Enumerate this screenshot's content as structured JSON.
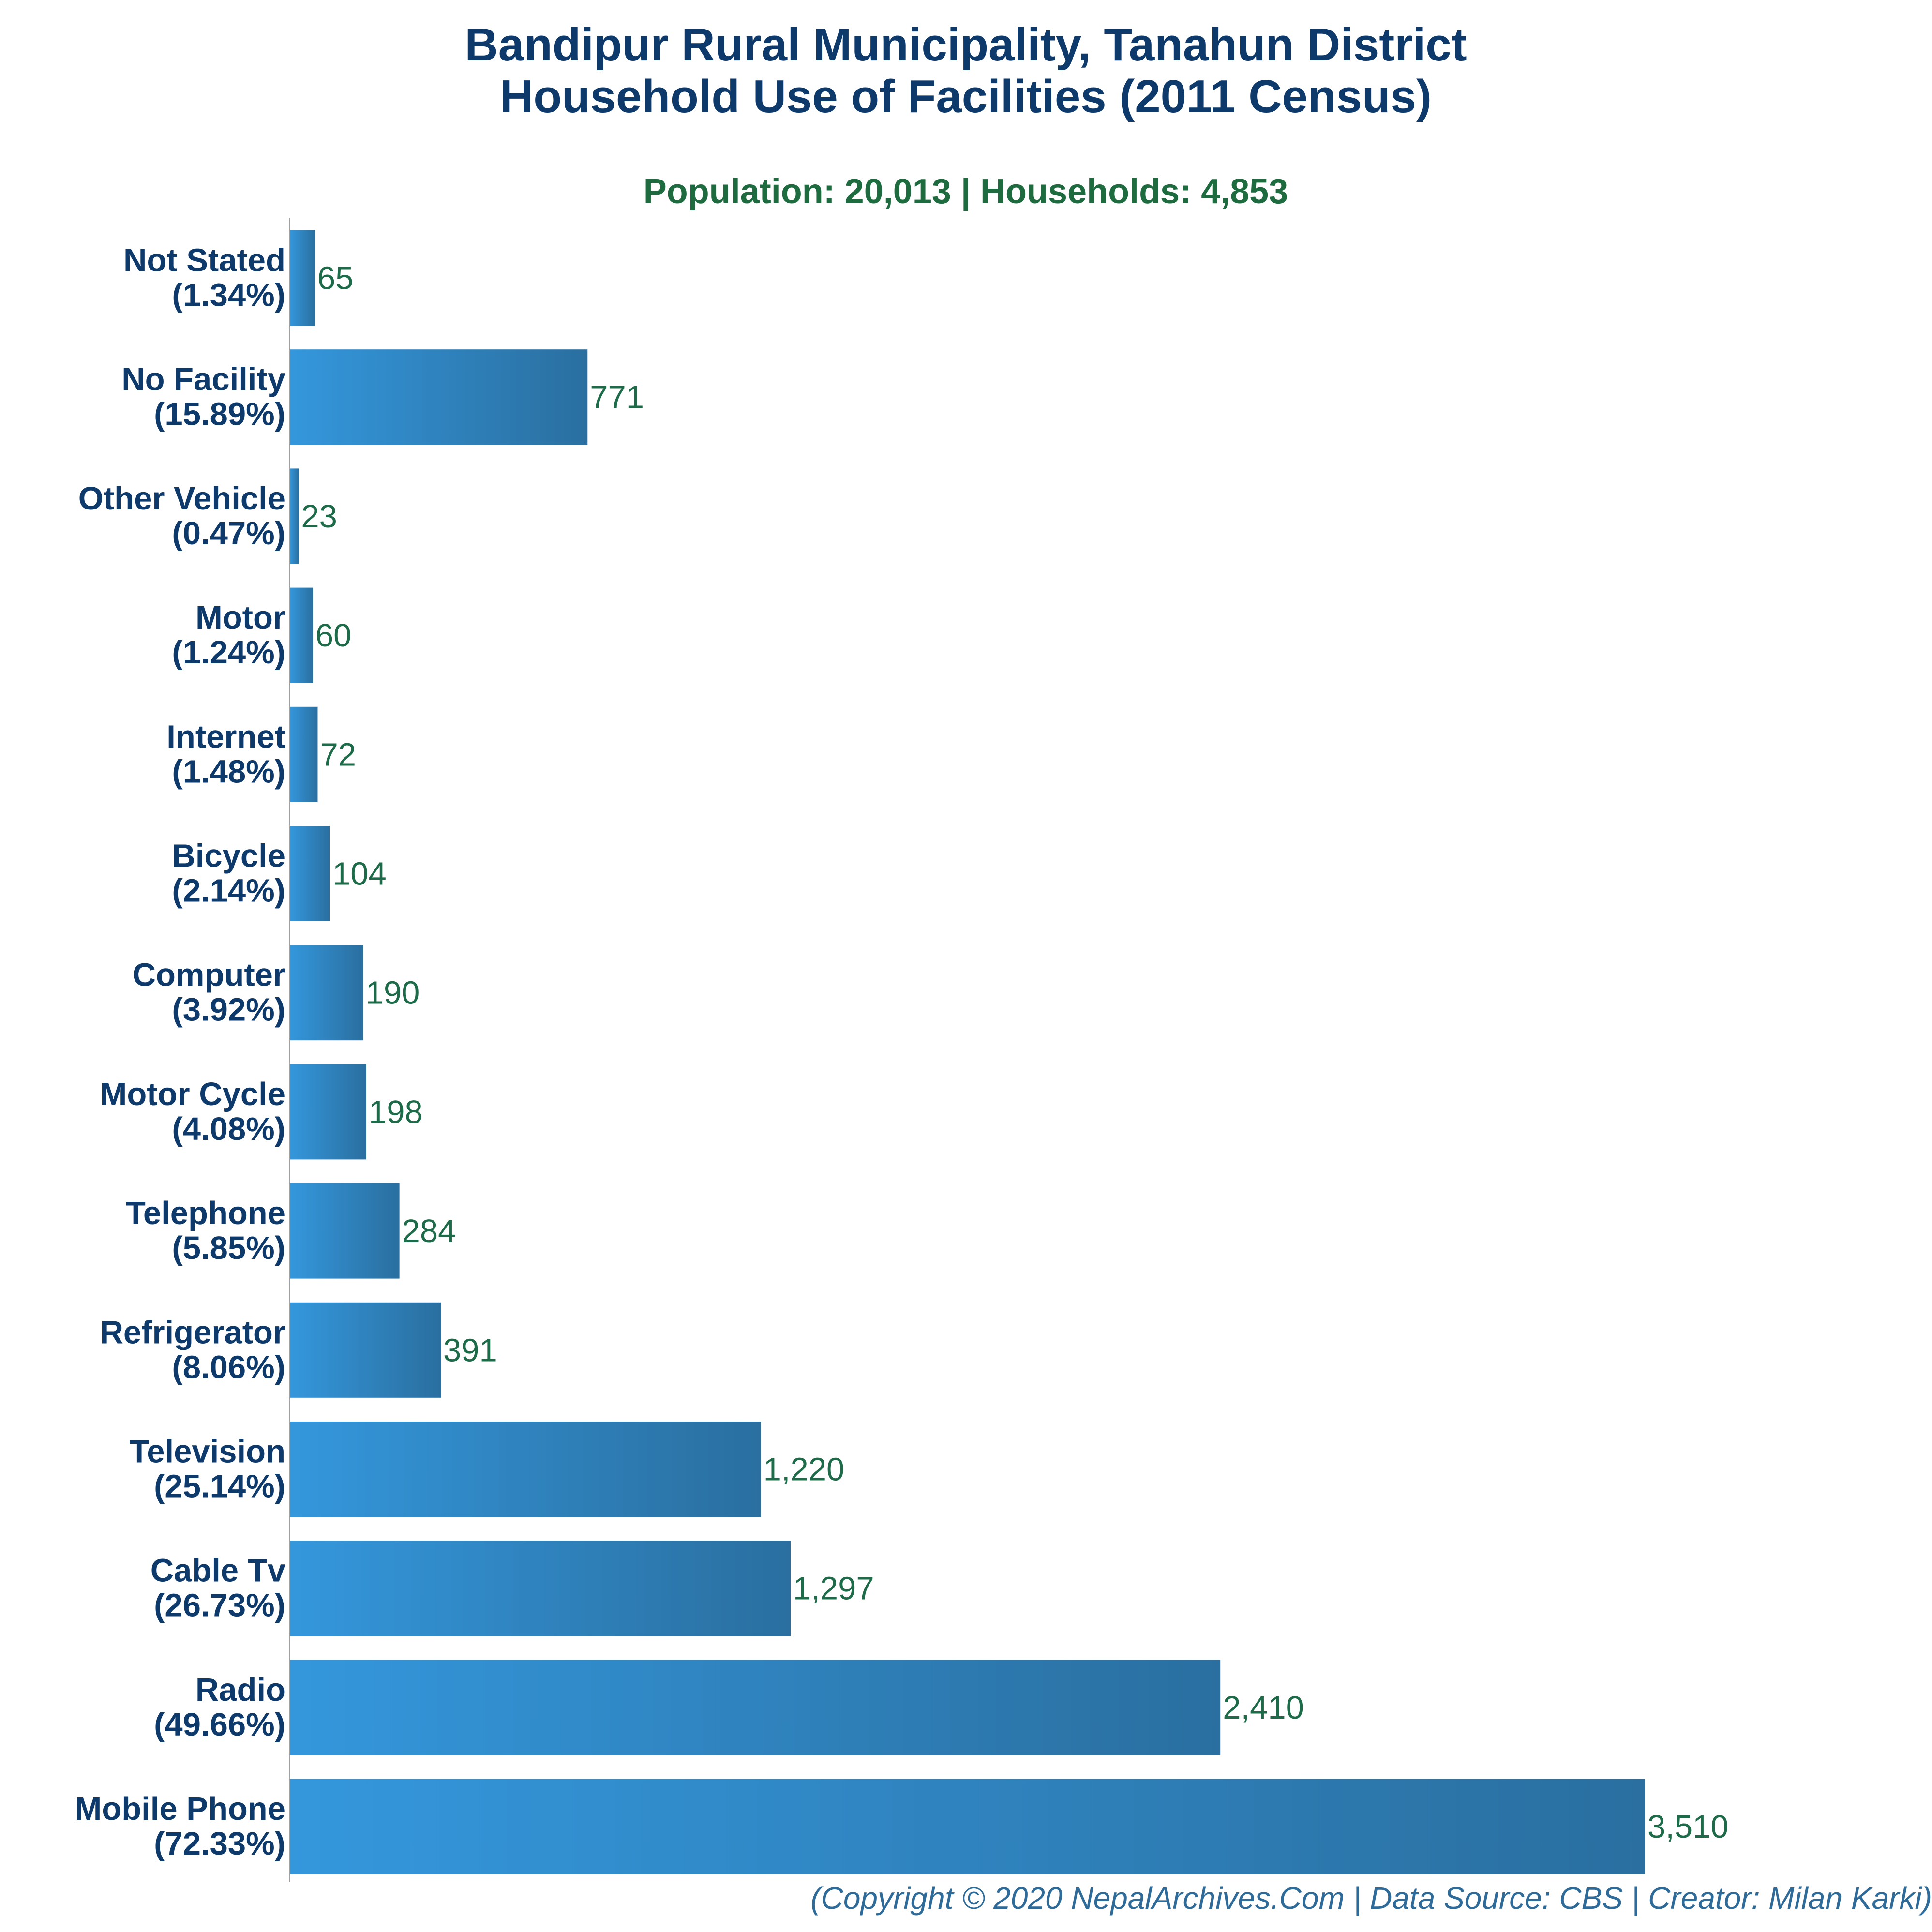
{
  "title_line1": "Bandipur Rural Municipality, Tanahun District",
  "title_line2": "Household Use of Facilities (2011 Census)",
  "subtitle": "Population: 20,013 | Households: 4,853",
  "footer": "(Copyright © 2020 NepalArchives.Com | Data Source: CBS | Creator: Milan Karki)",
  "colors": {
    "bar_light": "#3497dc",
    "bar_dark": "#2a6fa0",
    "title": "#0d3a6b",
    "subtitle": "#1e6b3f",
    "value_label": "#1e6b4a",
    "footer": "#2f6b99"
  },
  "chart_data": {
    "type": "bar",
    "orientation": "horizontal",
    "categories": [
      "Not Stated",
      "No Facility",
      "Other Vehicle",
      "Motor",
      "Internet",
      "Bicycle",
      "Computer",
      "Motor Cycle",
      "Telephone",
      "Refrigerator",
      "Television",
      "Cable Tv",
      "Radio",
      "Mobile Phone"
    ],
    "percent_labels": [
      "(1.34%)",
      "(15.89%)",
      "(0.47%)",
      "(1.24%)",
      "(1.48%)",
      "(2.14%)",
      "(3.92%)",
      "(4.08%)",
      "(5.85%)",
      "(8.06%)",
      "(25.14%)",
      "(26.73%)",
      "(49.66%)",
      "(72.33%)"
    ],
    "values": [
      65,
      771,
      23,
      60,
      72,
      104,
      190,
      198,
      284,
      391,
      1220,
      1297,
      2410,
      3510
    ],
    "value_labels": [
      "65",
      "771",
      "23",
      "60",
      "72",
      "104",
      "190",
      "198",
      "284",
      "391",
      "1,220",
      "1,297",
      "2,410",
      "3,510"
    ],
    "xlim": [
      0,
      3510
    ],
    "grid": false,
    "legend": "none"
  }
}
